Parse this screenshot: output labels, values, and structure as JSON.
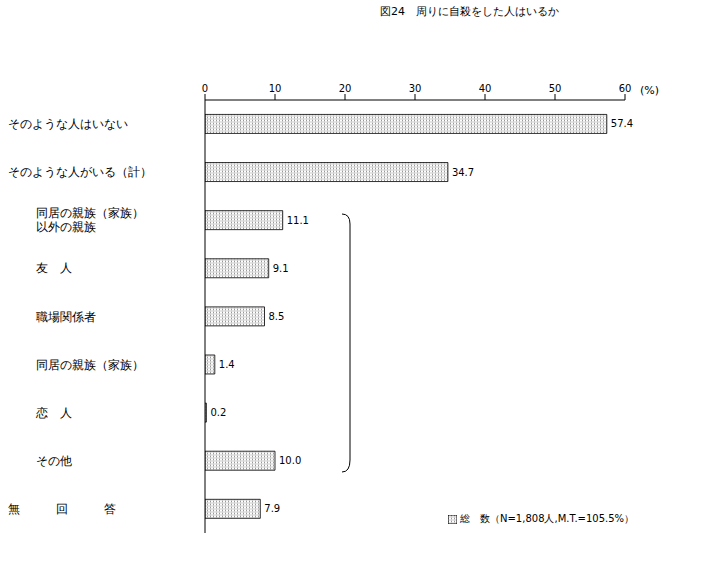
{
  "chart_data": {
    "type": "bar",
    "orientation": "horizontal",
    "title": "図24　周りに自殺をした人はいるか",
    "x_label": "(%)",
    "categories": [
      "そのような人はいない",
      "そのような人がいる（計）",
      "同居の親族（家族）\n以外の親族",
      "友　人",
      "職場関係者",
      "同居の親族（家族）",
      "恋　人",
      "その他",
      "無　　　回　　　答"
    ],
    "series": [
      {
        "name": "総　数（N=1,808人,M.T.=105.5%）",
        "color": "#999999",
        "values": [
          57.4,
          34.7,
          11.1,
          9.1,
          8.5,
          1.4,
          0.2,
          10.0,
          7.9
        ],
        "value_labels": [
          "57.4",
          "34.7",
          "11.1",
          "9.1",
          "8.5",
          "1.4",
          "0.2",
          "10.0",
          "7.9"
        ]
      }
    ],
    "xlim": [
      0,
      60
    ],
    "xticks": [
      0,
      10,
      20,
      30,
      40,
      50,
      60
    ],
    "grid": false,
    "data_labels": true,
    "legend": "lower right"
  }
}
